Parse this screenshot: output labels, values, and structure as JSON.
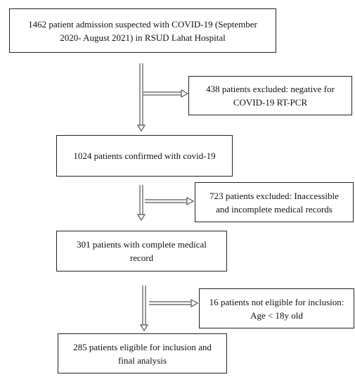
{
  "nodes": [
    {
      "lines": [
        "1462 patient admission suspected with COVID-19 (September",
        "2020- August 2021) in RSUD Lahat Hospital"
      ]
    },
    {
      "lines": [
        "438 patients excluded: negative for",
        "COVID-19 RT-PCR"
      ]
    },
    {
      "lines": [
        "1024 patients confirmed with covid-19"
      ]
    },
    {
      "lines": [
        "723 patients excluded: Inaccessible",
        "and incomplete medical records"
      ]
    },
    {
      "lines": [
        "301 patients with complete medical",
        "record"
      ]
    },
    {
      "lines": [
        "16 patients not eligible for inclusion:",
        "Age < 18y old"
      ]
    },
    {
      "lines": [
        "285 patients eligible for inclusion and",
        "final analysis"
      ]
    }
  ]
}
